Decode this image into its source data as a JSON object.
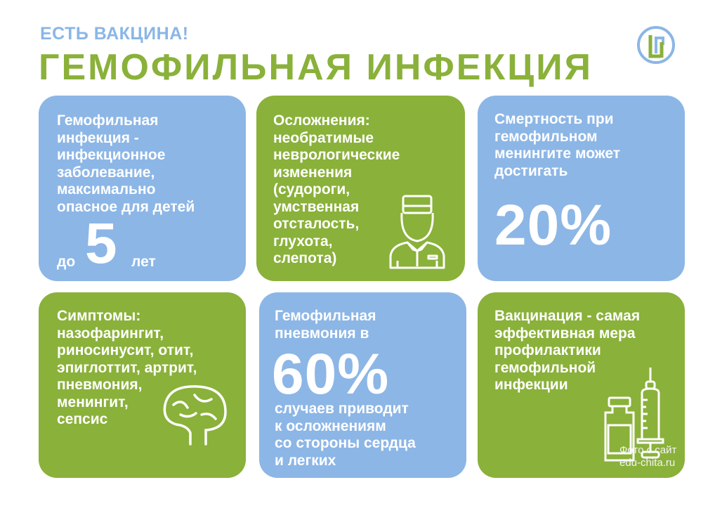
{
  "header": {
    "subtitle": "ЕСТЬ ВАКЦИНА!",
    "title": "ГЕМОФИЛЬНАЯ ИНФЕКЦИЯ",
    "colors": {
      "blue": "#8cb6e6",
      "green": "#8ab13a"
    }
  },
  "cards": [
    {
      "text": "Гемофильная\nинфекция -\nинфекционное\nзаболевание,\nмаксимально\nопасное для детей",
      "prefix": "до",
      "number": "5",
      "suffix": "лет"
    },
    {
      "text": "Осложнения:\nнеобратимые\nневрологические\nизменения\n(судороги,\nумственная\nотсталость,\nглухота,\nслепота)",
      "icon": "doctor-icon"
    },
    {
      "text": "Смертность при\nгемофильном\nменингите может\nдостигать",
      "number": "20%"
    },
    {
      "text": "Симптомы:\nназофарингит,\nриносинусит, отит,\nэпиглоттит, артрит,\nпневмония,\nменингит,\nсепсис",
      "icon": "brain-icon"
    },
    {
      "text": "Гемофильная\nпневмония в",
      "number": "60%",
      "text2": "случаев приводит\nк осложнениям\nсо стороны сердца\nи легких"
    },
    {
      "text": "Вакцинация - самая\nэффективная мера\nпрофилактики\nгемофильной\nинфекции",
      "icon": "vaccine-icon"
    }
  ],
  "watermark": "Фото с сайт\nedu-chita.ru"
}
